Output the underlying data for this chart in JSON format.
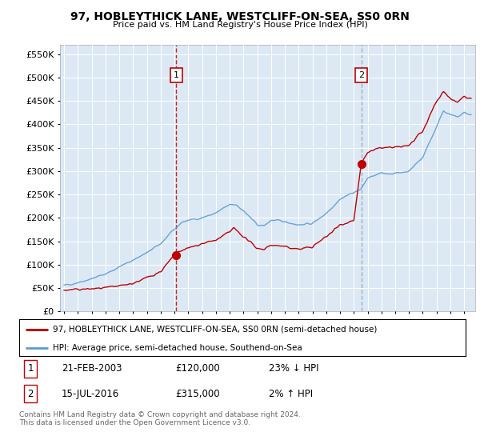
{
  "title": "97, HOBLEYTHICK LANE, WESTCLIFF-ON-SEA, SS0 0RN",
  "subtitle": "Price paid vs. HM Land Registry's House Price Index (HPI)",
  "ylabel_ticks": [
    "£0",
    "£50K",
    "£100K",
    "£150K",
    "£200K",
    "£250K",
    "£300K",
    "£350K",
    "£400K",
    "£450K",
    "£500K",
    "£550K"
  ],
  "ytick_values": [
    0,
    50000,
    100000,
    150000,
    200000,
    250000,
    300000,
    350000,
    400000,
    450000,
    500000,
    550000
  ],
  "ylim": [
    0,
    570000
  ],
  "xlim_start": 1994.7,
  "xlim_end": 2024.8,
  "transaction1": {
    "date_num": 2003.13,
    "price": 120000,
    "label": "1"
  },
  "transaction2": {
    "date_num": 2016.54,
    "price": 315000,
    "label": "2"
  },
  "legend_line1": "97, HOBLEYTHICK LANE, WESTCLIFF-ON-SEA, SS0 0RN (semi-detached house)",
  "legend_line2": "HPI: Average price, semi-detached house, Southend-on-Sea",
  "table_row1": [
    "1",
    "21-FEB-2003",
    "£120,000",
    "23% ↓ HPI"
  ],
  "table_row2": [
    "2",
    "15-JUL-2016",
    "£315,000",
    "2% ↑ HPI"
  ],
  "footer": "Contains HM Land Registry data © Crown copyright and database right 2024.\nThis data is licensed under the Open Government Licence v3.0.",
  "hpi_color": "#5B9BD5",
  "price_color": "#C00000",
  "vline1_color": "#C00000",
  "vline2_color": "#8EA9C1",
  "bg_color": "#FFFFFF",
  "plot_bg_color": "#DCE9F5",
  "grid_color": "#FFFFFF"
}
